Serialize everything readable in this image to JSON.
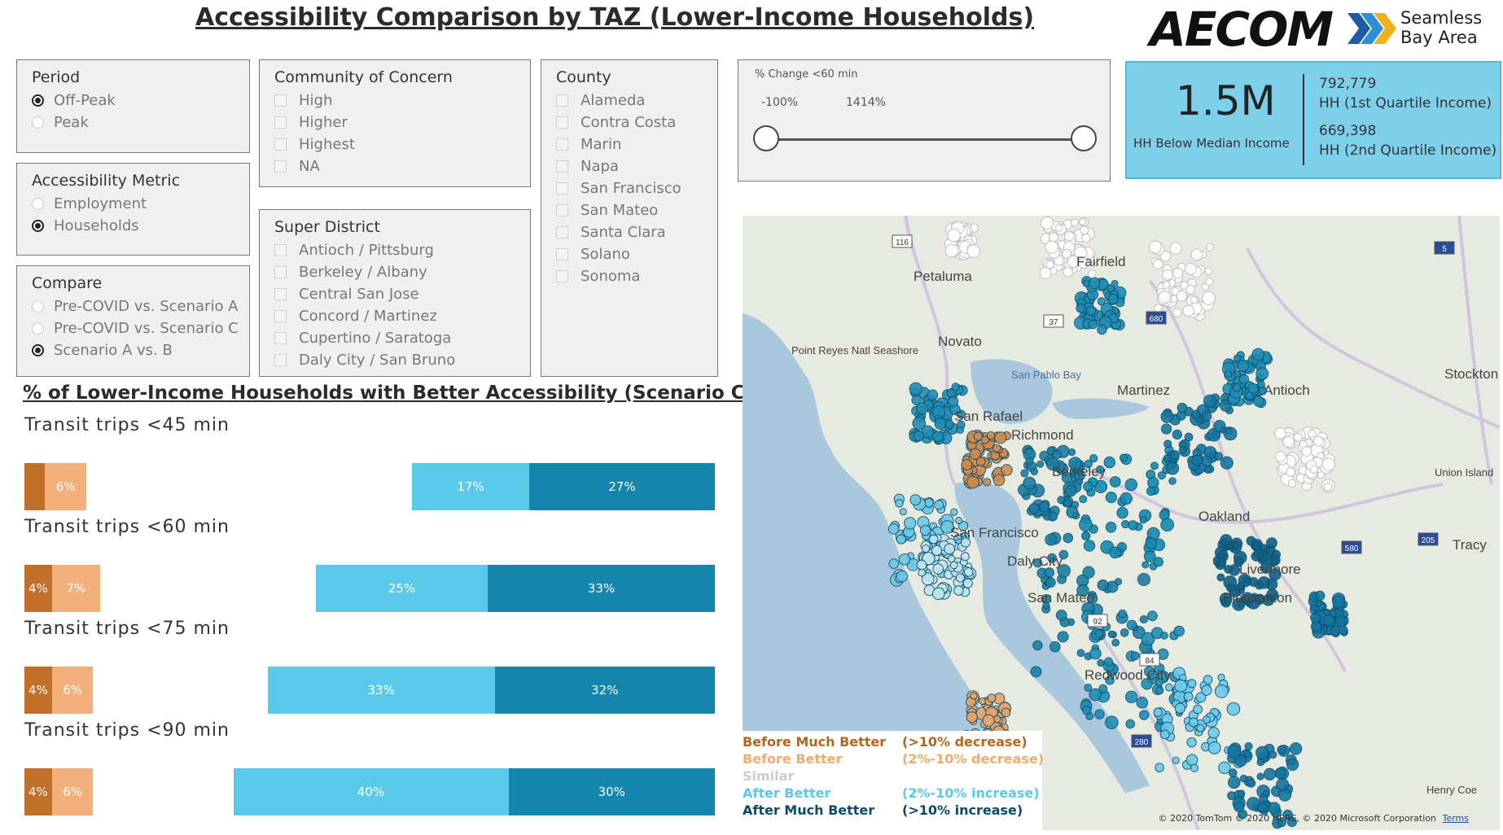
{
  "title": "Accessibility Comparison by TAZ (Lower-Income Households)",
  "logos": {
    "aecom": "AECOM",
    "seamless_line1": "Seamless",
    "seamless_line2": "Bay Area"
  },
  "filters": {
    "period": {
      "title": "Period",
      "options": [
        {
          "label": "Off-Peak",
          "selected": true
        },
        {
          "label": "Peak",
          "selected": false
        }
      ]
    },
    "accessibility_metric": {
      "title": "Accessibility Metric",
      "options": [
        {
          "label": "Employment",
          "selected": false
        },
        {
          "label": "Households",
          "selected": true
        }
      ]
    },
    "compare": {
      "title": "Compare",
      "options": [
        {
          "label": "Pre-COVID vs. Scenario A",
          "selected": false
        },
        {
          "label": "Pre-COVID vs. Scenario C",
          "selected": false
        },
        {
          "label": "Scenario A vs. B",
          "selected": true
        }
      ]
    },
    "community": {
      "title": "Community of Concern",
      "options": [
        "High",
        "Higher",
        "Highest",
        "NA"
      ]
    },
    "super_district": {
      "title": "Super District",
      "options": [
        "Antioch / Pittsburg",
        "Berkeley / Albany",
        "Central San Jose",
        "Concord / Martinez",
        "Cupertino / Saratoga",
        "Daly City / San Bruno"
      ]
    },
    "county": {
      "title": "County",
      "options": [
        "Alameda",
        "Contra Costa",
        "Marin",
        "Napa",
        "San Francisco",
        "San Mateo",
        "Santa Clara",
        "Solano",
        "Sonoma"
      ]
    }
  },
  "slider": {
    "title": "% Change <60 min",
    "min_label": "-100%",
    "max_label": "1414%",
    "range": [
      -100,
      1414
    ]
  },
  "kpi": {
    "main_value": "1.5M",
    "main_label": "HH Below Median Income",
    "q1_value": "792,779",
    "q1_label": "HH (1st Quartile Income)",
    "q2_value": "669,398",
    "q2_label": "HH (2nd Quartile Income)"
  },
  "section_title": "% of Lower-Income Households with Better Accessibility (Scenario Comparison)",
  "colors": {
    "before_much": "#c1702b",
    "before": "#f4b07a",
    "after": "#5ac9ea",
    "after_much": "#1486ad"
  },
  "bars": [
    {
      "label": "Transit trips <45 min",
      "before_much": 3,
      "before_much_label": "",
      "before": 6,
      "before_label": "6%",
      "after": 17,
      "after_label": "17%",
      "after_much": 27,
      "after_much_label": "27%"
    },
    {
      "label": "Transit trips <60 min",
      "before_much": 4,
      "before_much_label": "4%",
      "before": 7,
      "before_label": "7%",
      "after": 25,
      "after_label": "25%",
      "after_much": 33,
      "after_much_label": "33%"
    },
    {
      "label": "Transit trips <75 min",
      "before_much": 4,
      "before_much_label": "4%",
      "before": 6,
      "before_label": "6%",
      "after": 33,
      "after_label": "33%",
      "after_much": 32,
      "after_much_label": "32%"
    },
    {
      "label": "Transit trips <90 min",
      "before_much": 4,
      "before_much_label": "4%",
      "before": 6,
      "before_label": "6%",
      "after": 40,
      "after_label": "40%",
      "after_much": 30,
      "after_much_label": "30%"
    }
  ],
  "map": {
    "place_labels": [
      "Petaluma",
      "Fairfield",
      "Novato",
      "San Rafael",
      "Richmond",
      "Berkeley",
      "Oakland",
      "San Francisco",
      "Daly City",
      "San Mateo",
      "Martinez",
      "Antioch",
      "Livermore",
      "Pleasanton",
      "Tracy",
      "Stockton",
      "Union Island",
      "Point Reyes Natl Seashore",
      "San Pablo Bay",
      "Henry Coe",
      "Redwood City"
    ],
    "route_shields": [
      "116",
      "37",
      "680",
      "5",
      "580",
      "205",
      "92",
      "84",
      "280"
    ],
    "attribution": "© 2020 TomTom © 2020 HERE, © 2020 Microsoft Corporation",
    "terms": "Terms"
  },
  "legend": [
    {
      "label": "Before Much Better",
      "desc": "(>10% decrease)",
      "color": "#b5651d"
    },
    {
      "label": "Before Better",
      "desc": "(2%-10% decrease)",
      "color": "#f0ab6e"
    },
    {
      "label": "Similar",
      "desc": "",
      "color": "#cccccc"
    },
    {
      "label": "After Better",
      "desc": "(2%-10% increase)",
      "color": "#5ac9ea"
    },
    {
      "label": "After Much Better",
      "desc": "(>10% increase)",
      "color": "#0b4a6b"
    }
  ]
}
